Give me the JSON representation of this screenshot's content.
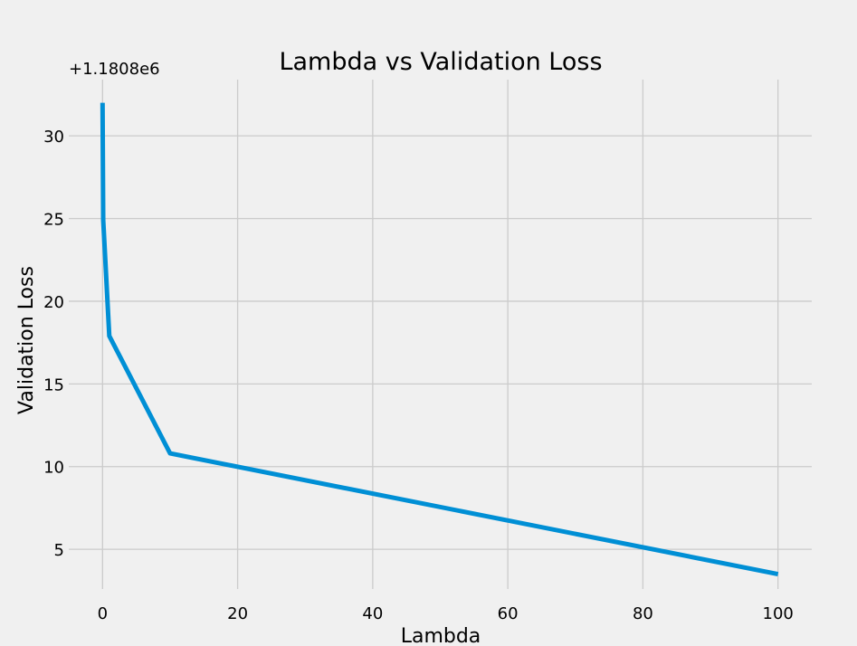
{
  "chart_data": {
    "type": "line",
    "title": "Lambda vs Validation Loss",
    "xlabel": "Lambda",
    "ylabel": "Validation Loss",
    "y_offset_label": "+1.1808e6",
    "x": [
      0.001,
      0.01,
      0.1,
      1,
      10,
      100
    ],
    "series": [
      {
        "values": [
          32.0,
          31.3,
          24.9,
          17.9,
          10.8,
          3.5
        ],
        "color": "#008fd5"
      }
    ],
    "xlim": [
      -4.999,
      104.999
    ],
    "ylim": [
      2.6,
      33.4
    ],
    "xticks": [
      0,
      20,
      40,
      60,
      80,
      100
    ],
    "xtick_labels": [
      "0",
      "20",
      "40",
      "60",
      "80",
      "100"
    ],
    "yticks": [
      5,
      10,
      15,
      20,
      25,
      30
    ],
    "ytick_labels": [
      "5",
      "10",
      "15",
      "20",
      "25",
      "30"
    ],
    "grid": true,
    "background": "#f0f0f0",
    "grid_color": "#cbcbcb"
  }
}
